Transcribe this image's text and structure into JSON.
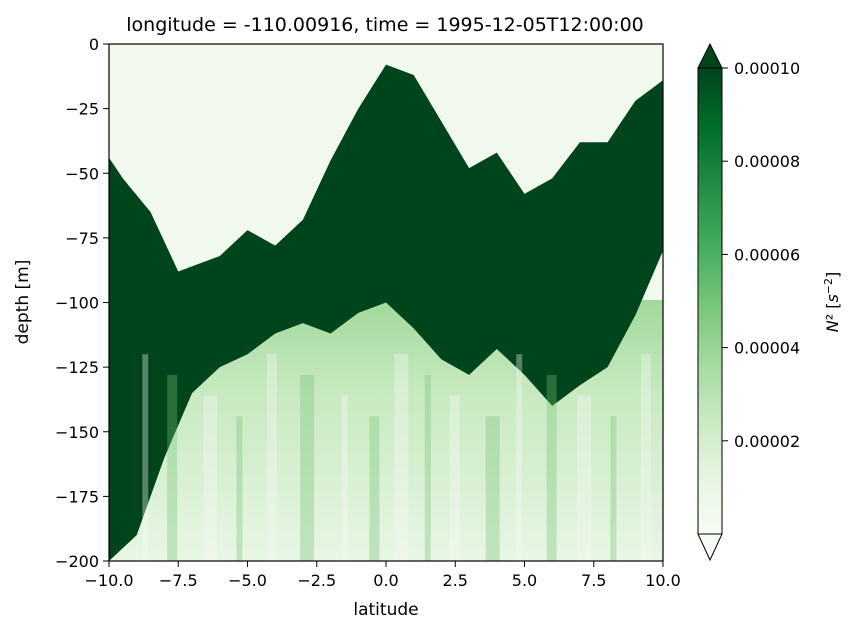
{
  "chart_data": {
    "type": "heatmap",
    "title": "longitude = -110.00916, time = 1995-12-05T12:00:00",
    "xlabel": "latitude",
    "ylabel": "depth [m]",
    "xlim": [
      -10.0,
      10.0
    ],
    "ylim": [
      -200,
      0
    ],
    "x_ticks": [
      -10.0,
      -7.5,
      -5.0,
      -2.5,
      0.0,
      2.5,
      5.0,
      7.5,
      10.0
    ],
    "x_tick_labels": [
      "−10.0",
      "−7.5",
      "−5.0",
      "−2.5",
      "0.0",
      "2.5",
      "5.0",
      "7.5",
      "10.0"
    ],
    "y_ticks": [
      0,
      -25,
      -50,
      -75,
      -100,
      -125,
      -150,
      -175,
      -200
    ],
    "y_tick_labels": [
      "0",
      "−25",
      "−50",
      "−75",
      "−100",
      "−125",
      "−150",
      "−175",
      "−200"
    ],
    "colorbar": {
      "label_html": "N² [s⁻²]",
      "vmin": 0.0,
      "vmax": 0.0001,
      "extend": "both",
      "colormap": "Greens",
      "ticks": [
        2e-05,
        4e-05,
        6e-05,
        8e-05,
        0.0001
      ],
      "tick_labels": [
        "0.00002",
        "0.00004",
        "0.00006",
        "0.00008",
        "0.00010"
      ]
    },
    "colormap_stops": [
      "#f7fcf5",
      "#e5f5e0",
      "#c7e9c0",
      "#a1d99b",
      "#74c476",
      "#41ab5d",
      "#238b45",
      "#006d2c",
      "#00441b"
    ],
    "field_description_points": {
      "upper_boundary_depth": [
        {
          "lat": -10.0,
          "depth": -44
        },
        {
          "lat": -9.5,
          "depth": -52
        },
        {
          "lat": -8.5,
          "depth": -65
        },
        {
          "lat": -7.5,
          "depth": -88
        },
        {
          "lat": -6.0,
          "depth": -82
        },
        {
          "lat": -5.0,
          "depth": -72
        },
        {
          "lat": -4.0,
          "depth": -78
        },
        {
          "lat": -3.0,
          "depth": -68
        },
        {
          "lat": -2.0,
          "depth": -45
        },
        {
          "lat": -1.0,
          "depth": -25
        },
        {
          "lat": 0.0,
          "depth": -8
        },
        {
          "lat": 1.0,
          "depth": -12
        },
        {
          "lat": 2.0,
          "depth": -30
        },
        {
          "lat": 3.0,
          "depth": -48
        },
        {
          "lat": 4.0,
          "depth": -42
        },
        {
          "lat": 5.0,
          "depth": -58
        },
        {
          "lat": 6.0,
          "depth": -52
        },
        {
          "lat": 7.0,
          "depth": -38
        },
        {
          "lat": 8.0,
          "depth": -38
        },
        {
          "lat": 9.0,
          "depth": -22
        },
        {
          "lat": 10.0,
          "depth": -14
        }
      ],
      "lower_boundary_depth": [
        {
          "lat": -10.0,
          "depth": -200
        },
        {
          "lat": -9.0,
          "depth": -190
        },
        {
          "lat": -8.0,
          "depth": -160
        },
        {
          "lat": -7.0,
          "depth": -135
        },
        {
          "lat": -6.0,
          "depth": -125
        },
        {
          "lat": -5.0,
          "depth": -120
        },
        {
          "lat": -4.0,
          "depth": -112
        },
        {
          "lat": -3.0,
          "depth": -108
        },
        {
          "lat": -2.0,
          "depth": -112
        },
        {
          "lat": -1.0,
          "depth": -104
        },
        {
          "lat": 0.0,
          "depth": -100
        },
        {
          "lat": 1.0,
          "depth": -110
        },
        {
          "lat": 2.0,
          "depth": -122
        },
        {
          "lat": 3.0,
          "depth": -128
        },
        {
          "lat": 4.0,
          "depth": -118
        },
        {
          "lat": 5.0,
          "depth": -128
        },
        {
          "lat": 6.0,
          "depth": -140
        },
        {
          "lat": 7.0,
          "depth": -132
        },
        {
          "lat": 8.0,
          "depth": -125
        },
        {
          "lat": 9.0,
          "depth": -105
        },
        {
          "lat": 10.0,
          "depth": -80
        }
      ]
    }
  }
}
